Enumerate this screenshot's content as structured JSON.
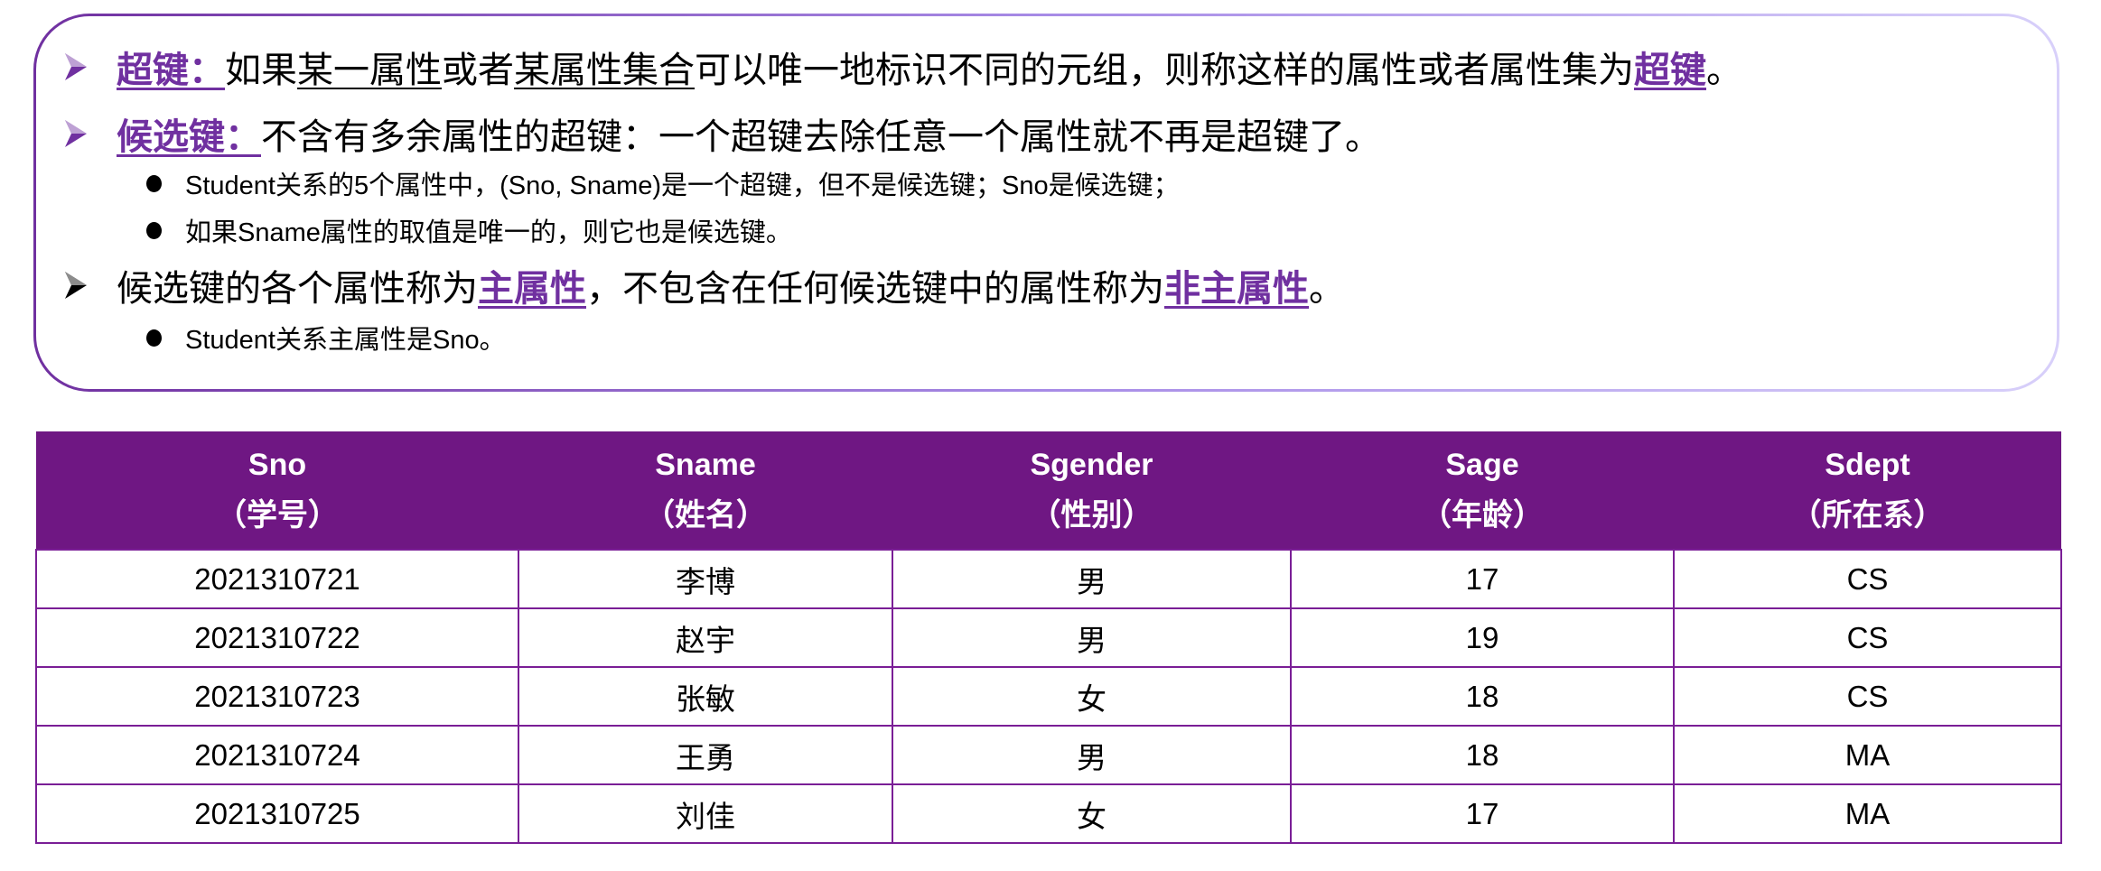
{
  "colors": {
    "accent": "#7030a0",
    "header_bg": "#6f1783",
    "border": "#7a1e96"
  },
  "points": [
    {
      "icon": "arrow-bullet-icon",
      "segments": [
        {
          "t": "超键：",
          "s": "kw"
        },
        {
          "t": "如果",
          "s": ""
        },
        {
          "t": "某一属性",
          "s": "ul"
        },
        {
          "t": "或者",
          "s": ""
        },
        {
          "t": "某属性集合",
          "s": "ul"
        },
        {
          "t": "可以唯一地标识不同的元组，则称这样的属性或者属性集为",
          "s": ""
        },
        {
          "t": "超键",
          "s": "kw"
        },
        {
          "t": "。",
          "s": ""
        }
      ]
    },
    {
      "icon": "arrow-bullet-icon",
      "segments": [
        {
          "t": "候选键：",
          "s": "kw"
        },
        {
          "t": "不含有多余属性的超键：一个超键去除任意一个属性就不再是超键了。",
          "s": ""
        }
      ]
    },
    {
      "sub": "Student关系的5个属性中，(Sno, Sname)是一个超键，但不是候选键；Sno是候选键；"
    },
    {
      "sub": "如果Sname属性的取值是唯一的，则它也是候选键。"
    },
    {
      "icon": "arrow-bullet-icon",
      "segments": [
        {
          "t": "候选键的各个属性称为",
          "s": ""
        },
        {
          "t": "主属性",
          "s": "kw"
        },
        {
          "t": "，不包含在任何候选键中的属性称为",
          "s": ""
        },
        {
          "t": "非主属性",
          "s": "kw"
        },
        {
          "t": "。",
          "s": ""
        }
      ]
    },
    {
      "sub": "Student关系主属性是Sno。"
    }
  ],
  "table": {
    "headers": [
      {
        "name": "Sno",
        "cn": "（学号）"
      },
      {
        "name": "Sname",
        "cn": "（姓名）"
      },
      {
        "name": "Sgender",
        "cn": "（性别）"
      },
      {
        "name": "Sage",
        "cn": "（年龄）"
      },
      {
        "name": "Sdept",
        "cn": "（所在系）"
      }
    ],
    "rows": [
      [
        "2021310721",
        "李博",
        "男",
        "17",
        "CS"
      ],
      [
        "2021310722",
        "赵宇",
        "男",
        "19",
        "CS"
      ],
      [
        "2021310723",
        "张敏",
        "女",
        "18",
        "CS"
      ],
      [
        "2021310724",
        "王勇",
        "男",
        "18",
        "MA"
      ],
      [
        "2021310725",
        "刘佳",
        "女",
        "17",
        "MA"
      ]
    ]
  }
}
